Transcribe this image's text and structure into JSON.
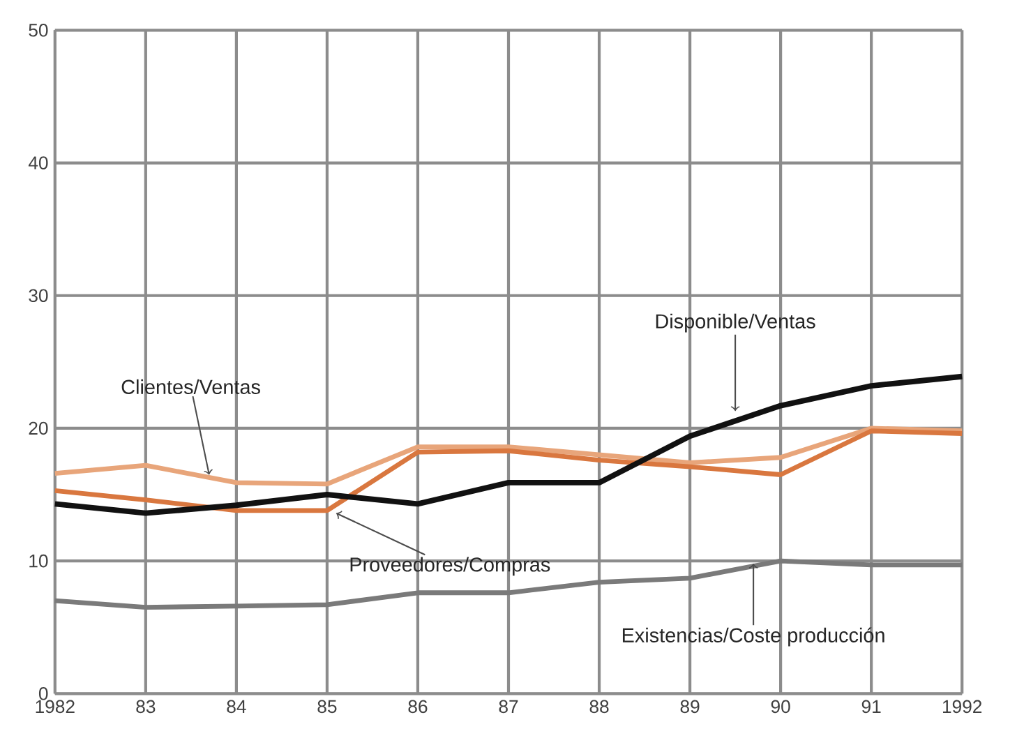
{
  "chart_data": {
    "type": "line",
    "x": [
      1982,
      1983,
      1984,
      1985,
      1986,
      1987,
      1988,
      1989,
      1990,
      1991,
      1992
    ],
    "xlim": [
      1982,
      1992
    ],
    "xticks": [
      1982,
      {
        "value": 1983,
        "label": "83"
      },
      {
        "value": 1984,
        "label": "84"
      },
      {
        "value": 1985,
        "label": "85"
      },
      {
        "value": 1986,
        "label": "86"
      },
      {
        "value": 1987,
        "label": "87"
      },
      {
        "value": 1988,
        "label": "88"
      },
      {
        "value": 1989,
        "label": "89"
      },
      {
        "value": 1990,
        "label": "90"
      },
      {
        "value": 1991,
        "label": "91"
      },
      1992
    ],
    "ylim": [
      0,
      50
    ],
    "yticks": [
      0,
      10,
      20,
      30,
      40,
      50
    ],
    "grid": true,
    "marker": "none",
    "line_style": "solid",
    "series": [
      {
        "color": "#e8a57a",
        "values": [
          16.6,
          17.2,
          15.9,
          15.8,
          18.6,
          18.6,
          18.0,
          17.4,
          17.8,
          20.0,
          19.8
        ]
      },
      {
        "color": "#d9773f",
        "values": [
          15.3,
          14.6,
          13.8,
          13.8,
          18.2,
          18.3,
          17.6,
          17.1,
          16.5,
          19.8,
          19.6
        ]
      },
      {
        "color": "#7a7a7a",
        "values": [
          7.0,
          6.5,
          6.6,
          6.7,
          7.6,
          7.6,
          8.4,
          8.7,
          10.0,
          9.7,
          9.7
        ]
      },
      {
        "color": "#111111",
        "values": [
          14.3,
          13.6,
          14.2,
          15.0,
          14.3,
          15.9,
          15.9,
          19.4,
          21.7,
          23.2,
          23.9
        ]
      }
    ],
    "annotations": [
      {
        "text": "Clientes/Ventas",
        "x": 1983.7,
        "y": 16.5
      },
      {
        "text": "Proveedores/Compras",
        "x": 1985.1,
        "y": 13.6
      },
      {
        "text": "Disponible/Ventas",
        "x": 1989.5,
        "y": 21.3
      },
      {
        "text": "Existencias/Coste producción",
        "x": 1989.7,
        "y": 9.8
      }
    ]
  }
}
